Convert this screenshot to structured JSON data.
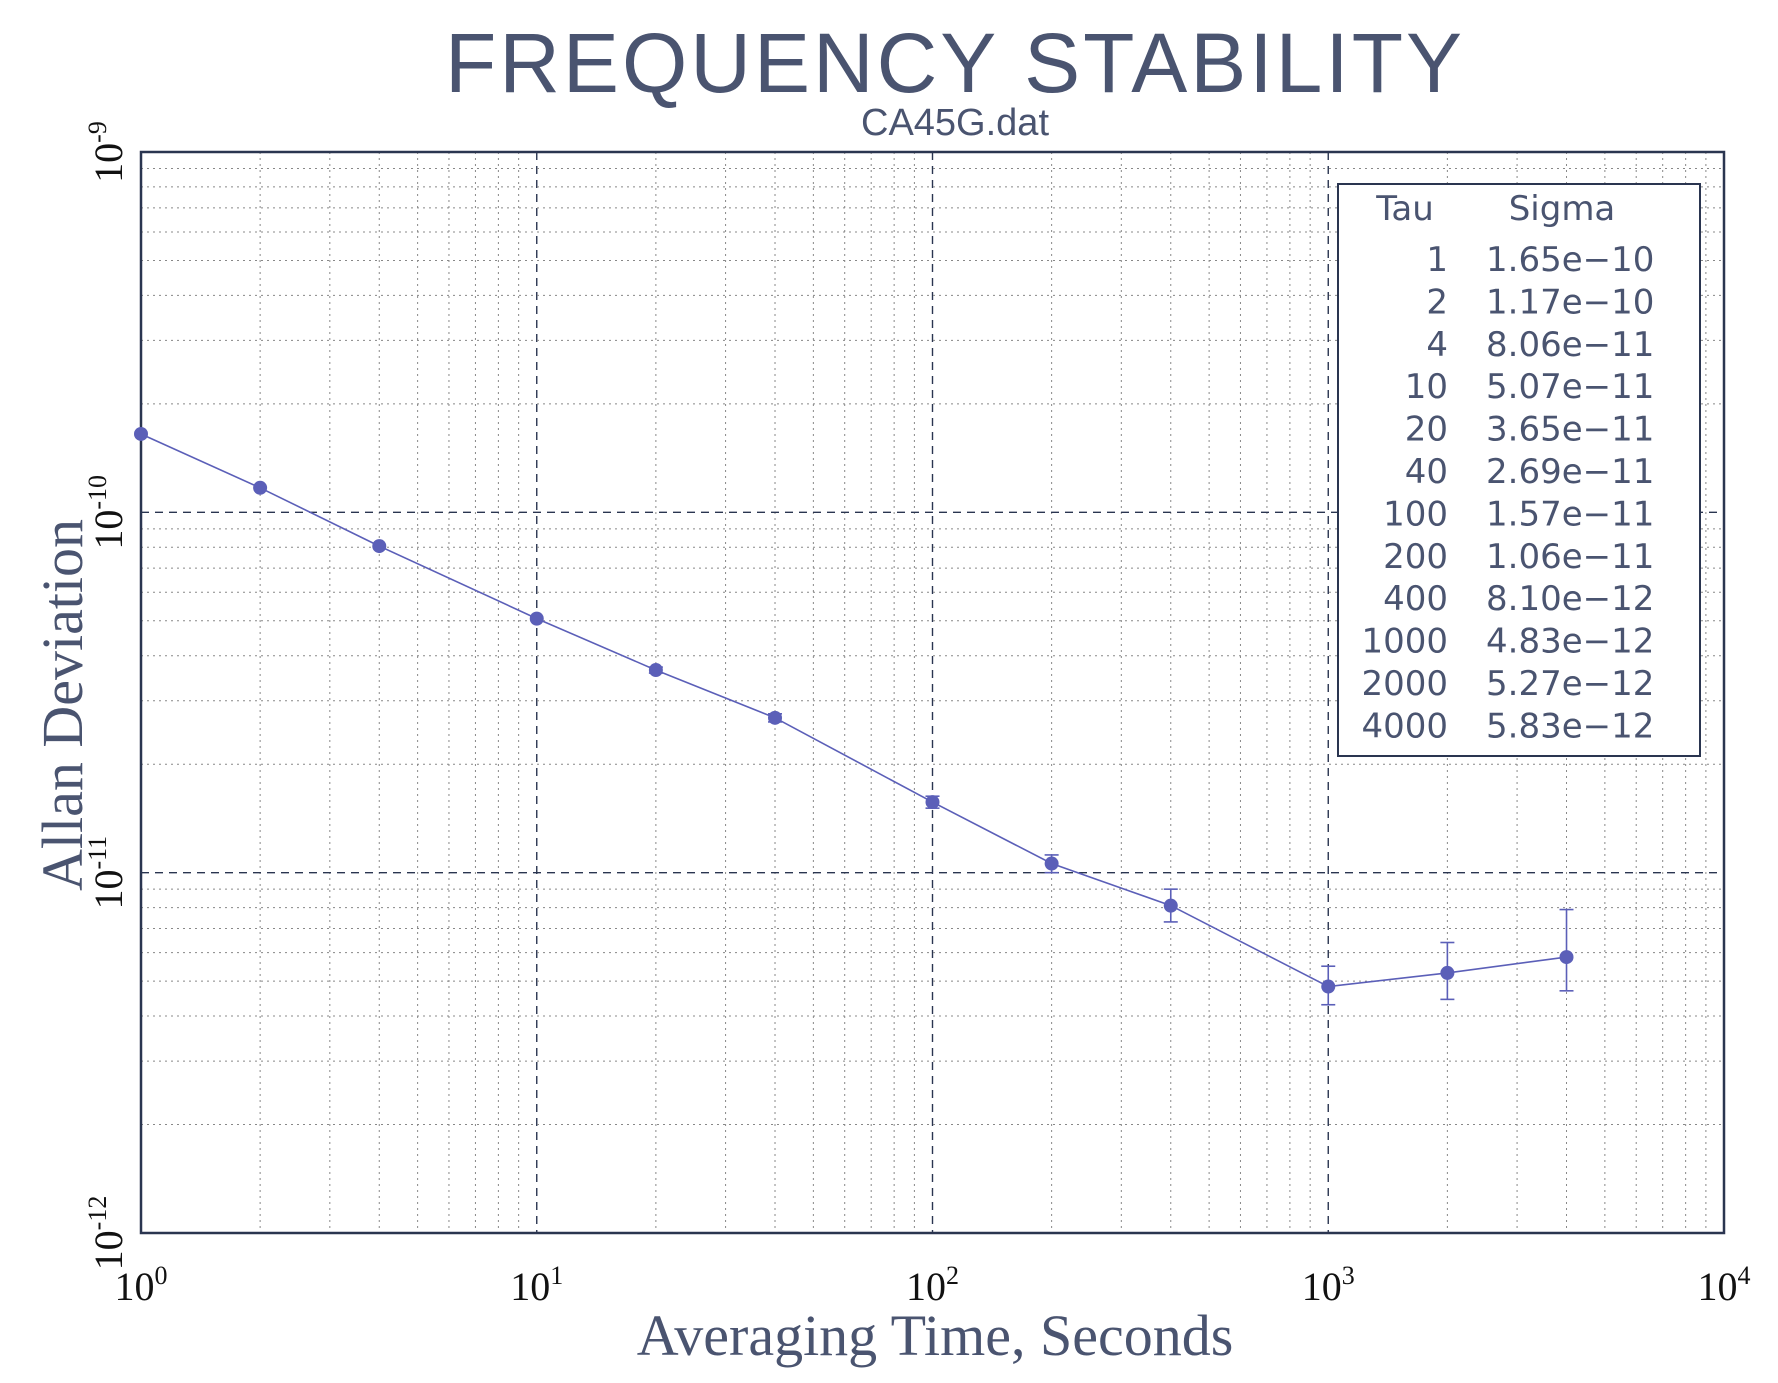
{
  "colors": {
    "title": "#4a5470",
    "series": "#5b5fb8",
    "grid": "#888888",
    "frame": "#2a3550",
    "text": "#111111"
  },
  "chart_data": {
    "type": "line",
    "title": "FREQUENCY STABILITY",
    "subtitle": "CA45G.dat",
    "xlabel": "Averaging Time, Seconds",
    "ylabel": "Allan Deviation",
    "xscale": "log",
    "yscale": "log",
    "xlim": [
      1,
      10000
    ],
    "ylim": [
      1e-12,
      1e-09
    ],
    "grid": true,
    "x_ticks": [
      {
        "base": "10",
        "exp": "0"
      },
      {
        "base": "10",
        "exp": "1"
      },
      {
        "base": "10",
        "exp": "2"
      },
      {
        "base": "10",
        "exp": "3"
      },
      {
        "base": "10",
        "exp": "4"
      }
    ],
    "y_ticks": [
      {
        "base": "10",
        "exp": "-12"
      },
      {
        "base": "10",
        "exp": "-11"
      },
      {
        "base": "10",
        "exp": "-10"
      },
      {
        "base": "10",
        "exp": "-9"
      }
    ],
    "series": [
      {
        "x": [
          1,
          2,
          4,
          10,
          20,
          40,
          100,
          200,
          400,
          1000,
          2000,
          4000
        ],
        "y": [
          1.65e-10,
          1.17e-10,
          8.06e-11,
          5.07e-11,
          3.65e-11,
          2.69e-11,
          1.57e-11,
          1.06e-11,
          8.1e-12,
          4.83e-12,
          5.27e-12,
          5.83e-12
        ],
        "err_low": [
          1.64e-10,
          1.16e-10,
          7.99e-11,
          4.99e-11,
          3.58e-11,
          2.62e-11,
          1.51e-11,
          1e-11,
          7.3e-12,
          4.3e-12,
          4.45e-12,
          4.7e-12
        ],
        "err_high": [
          1.66e-10,
          1.18e-10,
          8.13e-11,
          5.15e-11,
          3.72e-11,
          2.76e-11,
          1.63e-11,
          1.12e-11,
          9e-12,
          5.5e-12,
          6.4e-12,
          7.9e-12
        ]
      }
    ],
    "legend_table": {
      "position": "top-right",
      "header": [
        "Tau",
        "Sigma"
      ],
      "rows": [
        [
          "1",
          "1.65e−10"
        ],
        [
          "2",
          "1.17e−10"
        ],
        [
          "4",
          "8.06e−11"
        ],
        [
          "10",
          "5.07e−11"
        ],
        [
          "20",
          "3.65e−11"
        ],
        [
          "40",
          "2.69e−11"
        ],
        [
          "100",
          "1.57e−11"
        ],
        [
          "200",
          "1.06e−11"
        ],
        [
          "400",
          "8.10e−12"
        ],
        [
          "1000",
          "4.83e−12"
        ],
        [
          "2000",
          "5.27e−12"
        ],
        [
          "4000",
          "5.83e−12"
        ]
      ]
    }
  }
}
